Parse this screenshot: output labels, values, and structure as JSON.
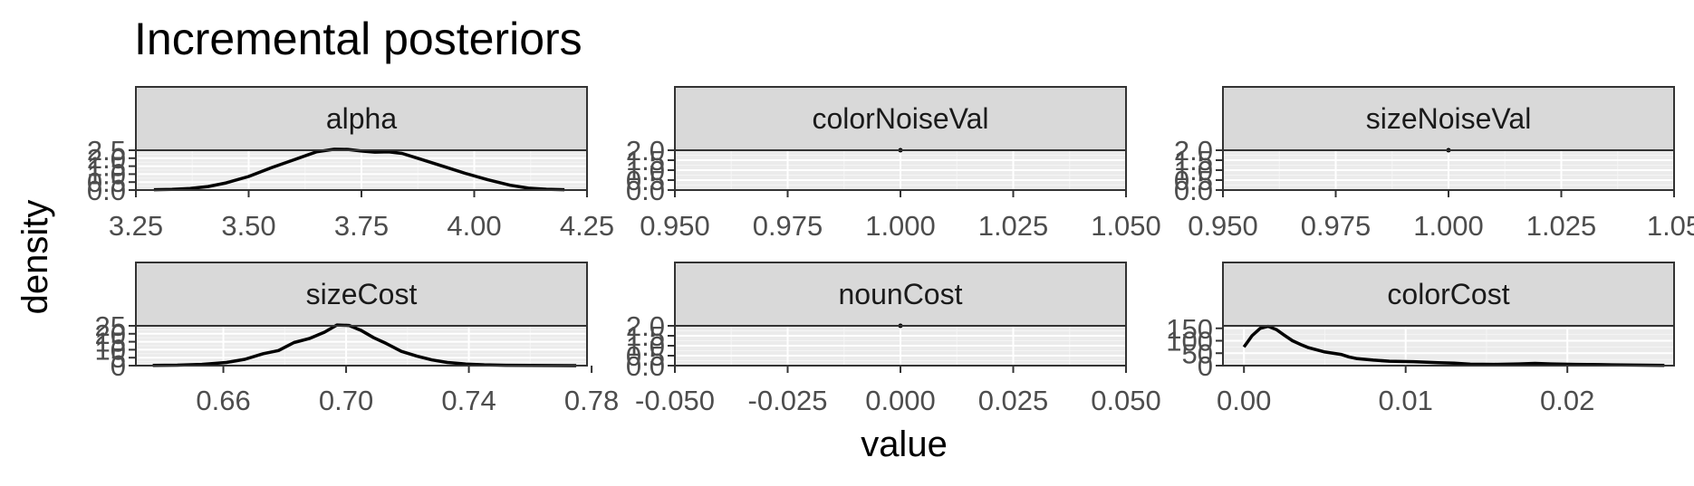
{
  "title": "Incremental posteriors",
  "xlabel": "value",
  "ylabel": "density",
  "colors": {
    "panel_bg": "#ebebeb",
    "grid_major": "#ffffff",
    "grid_minor": "#f5f5f5",
    "strip_bg": "#d9d9d9",
    "border": "#333333",
    "line": "#000000"
  },
  "chart_data": [
    {
      "type": "line",
      "facet": "alpha",
      "xlim": [
        3.25,
        4.25
      ],
      "ylim": [
        0,
        2.5
      ],
      "x_ticks": [
        3.25,
        3.5,
        3.75,
        4.0,
        4.25
      ],
      "x_tick_labels": [
        "3.25",
        "3.50",
        "3.75",
        "4.00",
        "4.25"
      ],
      "y_ticks": [
        0,
        0.5,
        1,
        1.5,
        2,
        2.5
      ],
      "y_tick_labels": [
        "0.0",
        "0.5",
        "1.0",
        "1.5",
        "2.0",
        "2.5"
      ],
      "x": [
        3.29,
        3.33,
        3.37,
        3.41,
        3.45,
        3.5,
        3.55,
        3.6,
        3.65,
        3.69,
        3.72,
        3.75,
        3.78,
        3.81,
        3.84,
        3.88,
        3.93,
        3.98,
        4.03,
        4.08,
        4.12,
        4.16,
        4.2
      ],
      "y": [
        0.02,
        0.04,
        0.1,
        0.22,
        0.45,
        0.85,
        1.4,
        1.9,
        2.4,
        2.56,
        2.55,
        2.45,
        2.38,
        2.4,
        2.3,
        1.95,
        1.5,
        1.05,
        0.65,
        0.3,
        0.12,
        0.05,
        0.02
      ]
    },
    {
      "type": "line",
      "facet": "colorNoiseVal",
      "xlim": [
        0.95,
        1.05
      ],
      "ylim": [
        0,
        2.0
      ],
      "x_ticks": [
        0.95,
        0.975,
        1.0,
        1.025,
        1.05
      ],
      "x_tick_labels": [
        "0.950",
        "0.975",
        "1.000",
        "1.025",
        "1.050"
      ],
      "y_ticks": [
        0,
        0.5,
        1,
        1.5,
        2
      ],
      "y_tick_labels": [
        "0.0",
        "0.5",
        "1.0",
        "1.5",
        "2.0"
      ],
      "x": [
        1.0
      ],
      "y": [
        2.0
      ]
    },
    {
      "type": "line",
      "facet": "sizeNoiseVal",
      "xlim": [
        0.95,
        1.05
      ],
      "ylim": [
        0,
        2.0
      ],
      "x_ticks": [
        0.95,
        0.975,
        1.0,
        1.025,
        1.05
      ],
      "x_tick_labels": [
        "0.950",
        "0.975",
        "1.000",
        "1.025",
        "1.05"
      ],
      "y_ticks": [
        0,
        0.5,
        1,
        1.5,
        2
      ],
      "y_tick_labels": [
        "0.0",
        "0.5",
        "1.0",
        "1.5",
        "2.0"
      ],
      "x": [
        1.0
      ],
      "y": [
        2.0
      ]
    },
    {
      "type": "line",
      "facet": "sizeCost",
      "xlim": [
        0.6315,
        0.7785
      ],
      "ylim": [
        0,
        25
      ],
      "x_ticks": [
        0.66,
        0.7,
        0.74,
        0.78
      ],
      "x_tick_labels": [
        "0.66",
        "0.70",
        "0.74",
        "0.78"
      ],
      "y_ticks": [
        0,
        5,
        10,
        15,
        20,
        25
      ],
      "y_tick_labels": [
        "0",
        "5",
        "10",
        "15",
        "20",
        "25"
      ],
      "x": [
        0.637,
        0.645,
        0.653,
        0.661,
        0.667,
        0.673,
        0.678,
        0.683,
        0.688,
        0.693,
        0.697,
        0.701,
        0.705,
        0.709,
        0.713,
        0.718,
        0.723,
        0.728,
        0.733,
        0.739,
        0.745,
        0.752,
        0.76,
        0.768,
        0.775
      ],
      "y": [
        0.1,
        0.3,
        0.8,
        2.0,
        4.0,
        7.5,
        9.5,
        14.5,
        17.0,
        21.0,
        25.5,
        25.2,
        22.0,
        17.5,
        14.0,
        9.0,
        6.0,
        3.6,
        2.0,
        1.0,
        0.5,
        0.2,
        0.1,
        0.05,
        0.02
      ]
    },
    {
      "type": "line",
      "facet": "nounCost",
      "xlim": [
        -0.05,
        0.05
      ],
      "ylim": [
        0,
        2.0
      ],
      "x_ticks": [
        -0.05,
        -0.025,
        0.0,
        0.025,
        0.05
      ],
      "x_tick_labels": [
        "-0.050",
        "-0.025",
        "0.000",
        "0.025",
        "0.050"
      ],
      "y_ticks": [
        0,
        0.5,
        1,
        1.5,
        2
      ],
      "y_tick_labels": [
        "0.0",
        "0.5",
        "1.0",
        "1.5",
        "2.0"
      ],
      "x": [
        0.0
      ],
      "y": [
        2.0
      ]
    },
    {
      "type": "line",
      "facet": "colorCost",
      "xlim": [
        -0.0013,
        0.0266
      ],
      "ylim": [
        0,
        160
      ],
      "x_ticks": [
        0.0,
        0.01,
        0.02
      ],
      "x_tick_labels": [
        "0.00",
        "0.01",
        "0.02"
      ],
      "y_ticks": [
        0,
        50,
        100,
        150
      ],
      "y_tick_labels": [
        "0",
        "50",
        "100",
        "150"
      ],
      "x": [
        0.0,
        0.0005,
        0.001,
        0.0015,
        0.002,
        0.0025,
        0.003,
        0.0035,
        0.004,
        0.005,
        0.006,
        0.0065,
        0.007,
        0.008,
        0.009,
        0.0105,
        0.012,
        0.013,
        0.014,
        0.0155,
        0.017,
        0.018,
        0.019,
        0.0205,
        0.022,
        0.024,
        0.026
      ],
      "y": [
        75,
        120,
        150,
        158,
        145,
        122,
        100,
        85,
        72,
        55,
        45,
        35,
        28,
        22,
        18,
        16,
        12,
        10,
        6,
        5,
        7,
        9,
        7,
        5,
        4,
        2,
        1
      ]
    }
  ]
}
